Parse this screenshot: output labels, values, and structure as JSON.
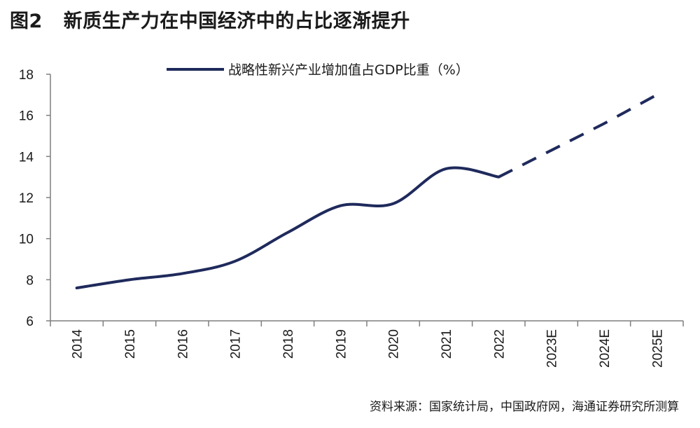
{
  "figure": {
    "number": "图2",
    "title": "新质生产力在中国经济中的占比逐渐提升",
    "source": "资料来源：国家统计局，中国政府网，海通证券研究所测算"
  },
  "chart_data": {
    "type": "line",
    "categories": [
      "2014",
      "2015",
      "2016",
      "2017",
      "2018",
      "2019",
      "2020",
      "2021",
      "2022",
      "2023E",
      "2024E",
      "2025E"
    ],
    "series": [
      {
        "name": "战略性新兴产业增加值占GDP比重（%）",
        "values": [
          7.6,
          8.0,
          8.3,
          8.9,
          10.3,
          11.6,
          11.7,
          13.4,
          13.0,
          14.3,
          15.6,
          17.0
        ],
        "actual_until": "2022",
        "forecast_from": "2022",
        "color": "#1f2a5c"
      }
    ],
    "ylim": [
      6,
      18
    ],
    "yticks": [
      6,
      8,
      10,
      12,
      14,
      16,
      18
    ],
    "xlabel": "",
    "ylabel": "",
    "grid": false,
    "legend": "top-center"
  }
}
